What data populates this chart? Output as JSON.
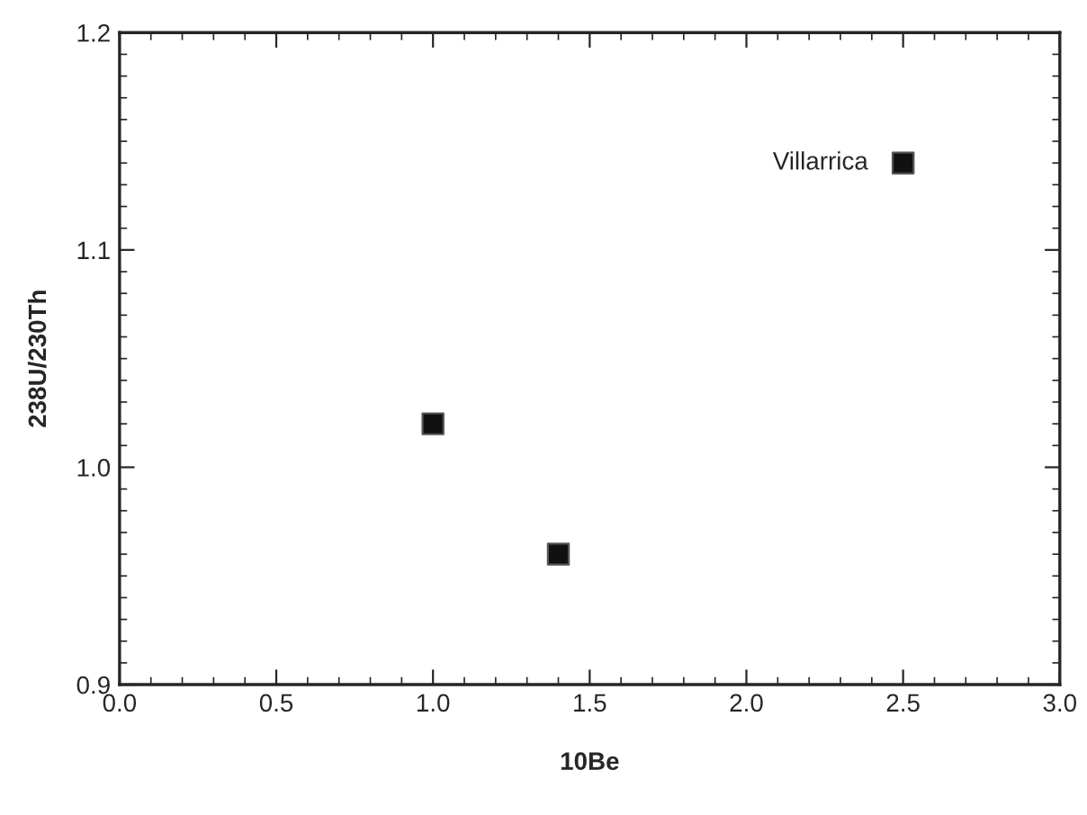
{
  "chart_data": {
    "type": "scatter",
    "xlabel": "10Be",
    "ylabel": "238U/230Th",
    "x": [
      1.0,
      1.4,
      2.5
    ],
    "series": [
      {
        "color": "#111111",
        "values": [
          1.02,
          0.96,
          1.14
        ]
      }
    ],
    "marker": "square",
    "grid": false,
    "legend": false,
    "xlim": [
      0.0,
      3.0
    ],
    "ylim": [
      0.9,
      1.2
    ],
    "xticks": [
      {
        "value": 0.0,
        "label": "0.0"
      },
      0.5,
      {
        "value": 1.0,
        "label": "1.0"
      },
      1.5,
      {
        "value": 2.0,
        "label": "2.0"
      },
      2.5,
      {
        "value": 3.0,
        "label": "3.0"
      }
    ],
    "yticks": [
      0.9,
      {
        "value": 1.0,
        "label": "1.0"
      },
      1.1,
      1.2
    ],
    "annotations": [
      {
        "text": "Villarrica",
        "x": 2.5,
        "y": 1.14
      }
    ]
  }
}
